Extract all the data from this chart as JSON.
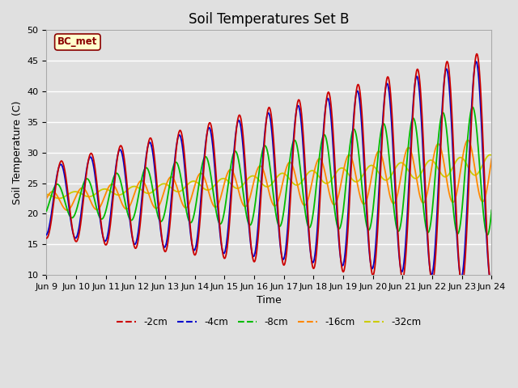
{
  "title": "Soil Temperatures Set B",
  "xlabel": "Time",
  "ylabel": "Soil Temperature (C)",
  "ylim": [
    10,
    50
  ],
  "xlim": [
    0,
    15
  ],
  "annotation": "BC_met",
  "series_colors": [
    "#cc0000",
    "#0000cc",
    "#00bb00",
    "#ff8800",
    "#cccc00"
  ],
  "series_labels": [
    "-2cm",
    "-4cm",
    "-8cm",
    "-16cm",
    "-32cm"
  ],
  "xtick_labels": [
    "Jun 9",
    "Jun 10",
    "Jun 11",
    "Jun 12",
    "Jun 13",
    "Jun 14",
    "Jun 15",
    "Jun 16",
    "Jun 17",
    "Jun 18",
    "Jun 19",
    "Jun 20",
    "Jun 21",
    "Jun 22",
    "Jun 23",
    "Jun 24"
  ],
  "xtick_positions": [
    0,
    1,
    2,
    3,
    4,
    5,
    6,
    7,
    8,
    9,
    10,
    11,
    12,
    13,
    14,
    15
  ],
  "background_color": "#e0e0e0",
  "grid_color": "#ffffff",
  "title_fontsize": 12,
  "axis_fontsize": 9,
  "tick_fontsize": 8
}
